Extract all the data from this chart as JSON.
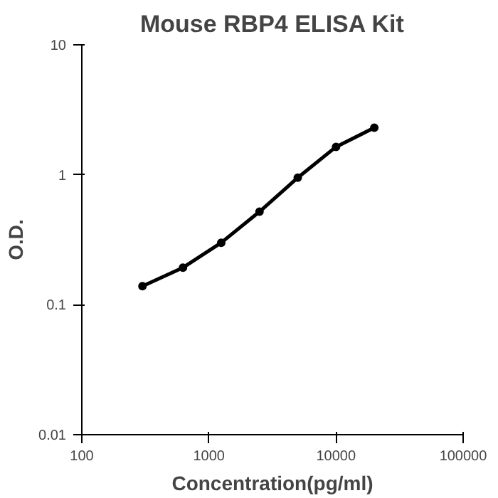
{
  "chart_data": {
    "type": "line",
    "title": "Mouse RBP4 ELISA Kit",
    "xlabel": "Concentration(pg/ml)",
    "ylabel": "O.D.",
    "x": [
      300,
      625,
      1250,
      2500,
      5000,
      10000,
      20000
    ],
    "series": [
      {
        "color": "#000000",
        "values": [
          0.139,
          0.193,
          0.3,
          0.52,
          0.95,
          1.64,
          2.3
        ]
      }
    ],
    "log": "xy",
    "xlim": [
      100,
      100000
    ],
    "ylim": [
      0.01,
      10
    ],
    "xticks": [
      100,
      1000,
      10000,
      100000
    ],
    "yticks": [
      0.01,
      0.1,
      1,
      10
    ],
    "grid": false,
    "marker": "circle",
    "line_style": "solid"
  }
}
